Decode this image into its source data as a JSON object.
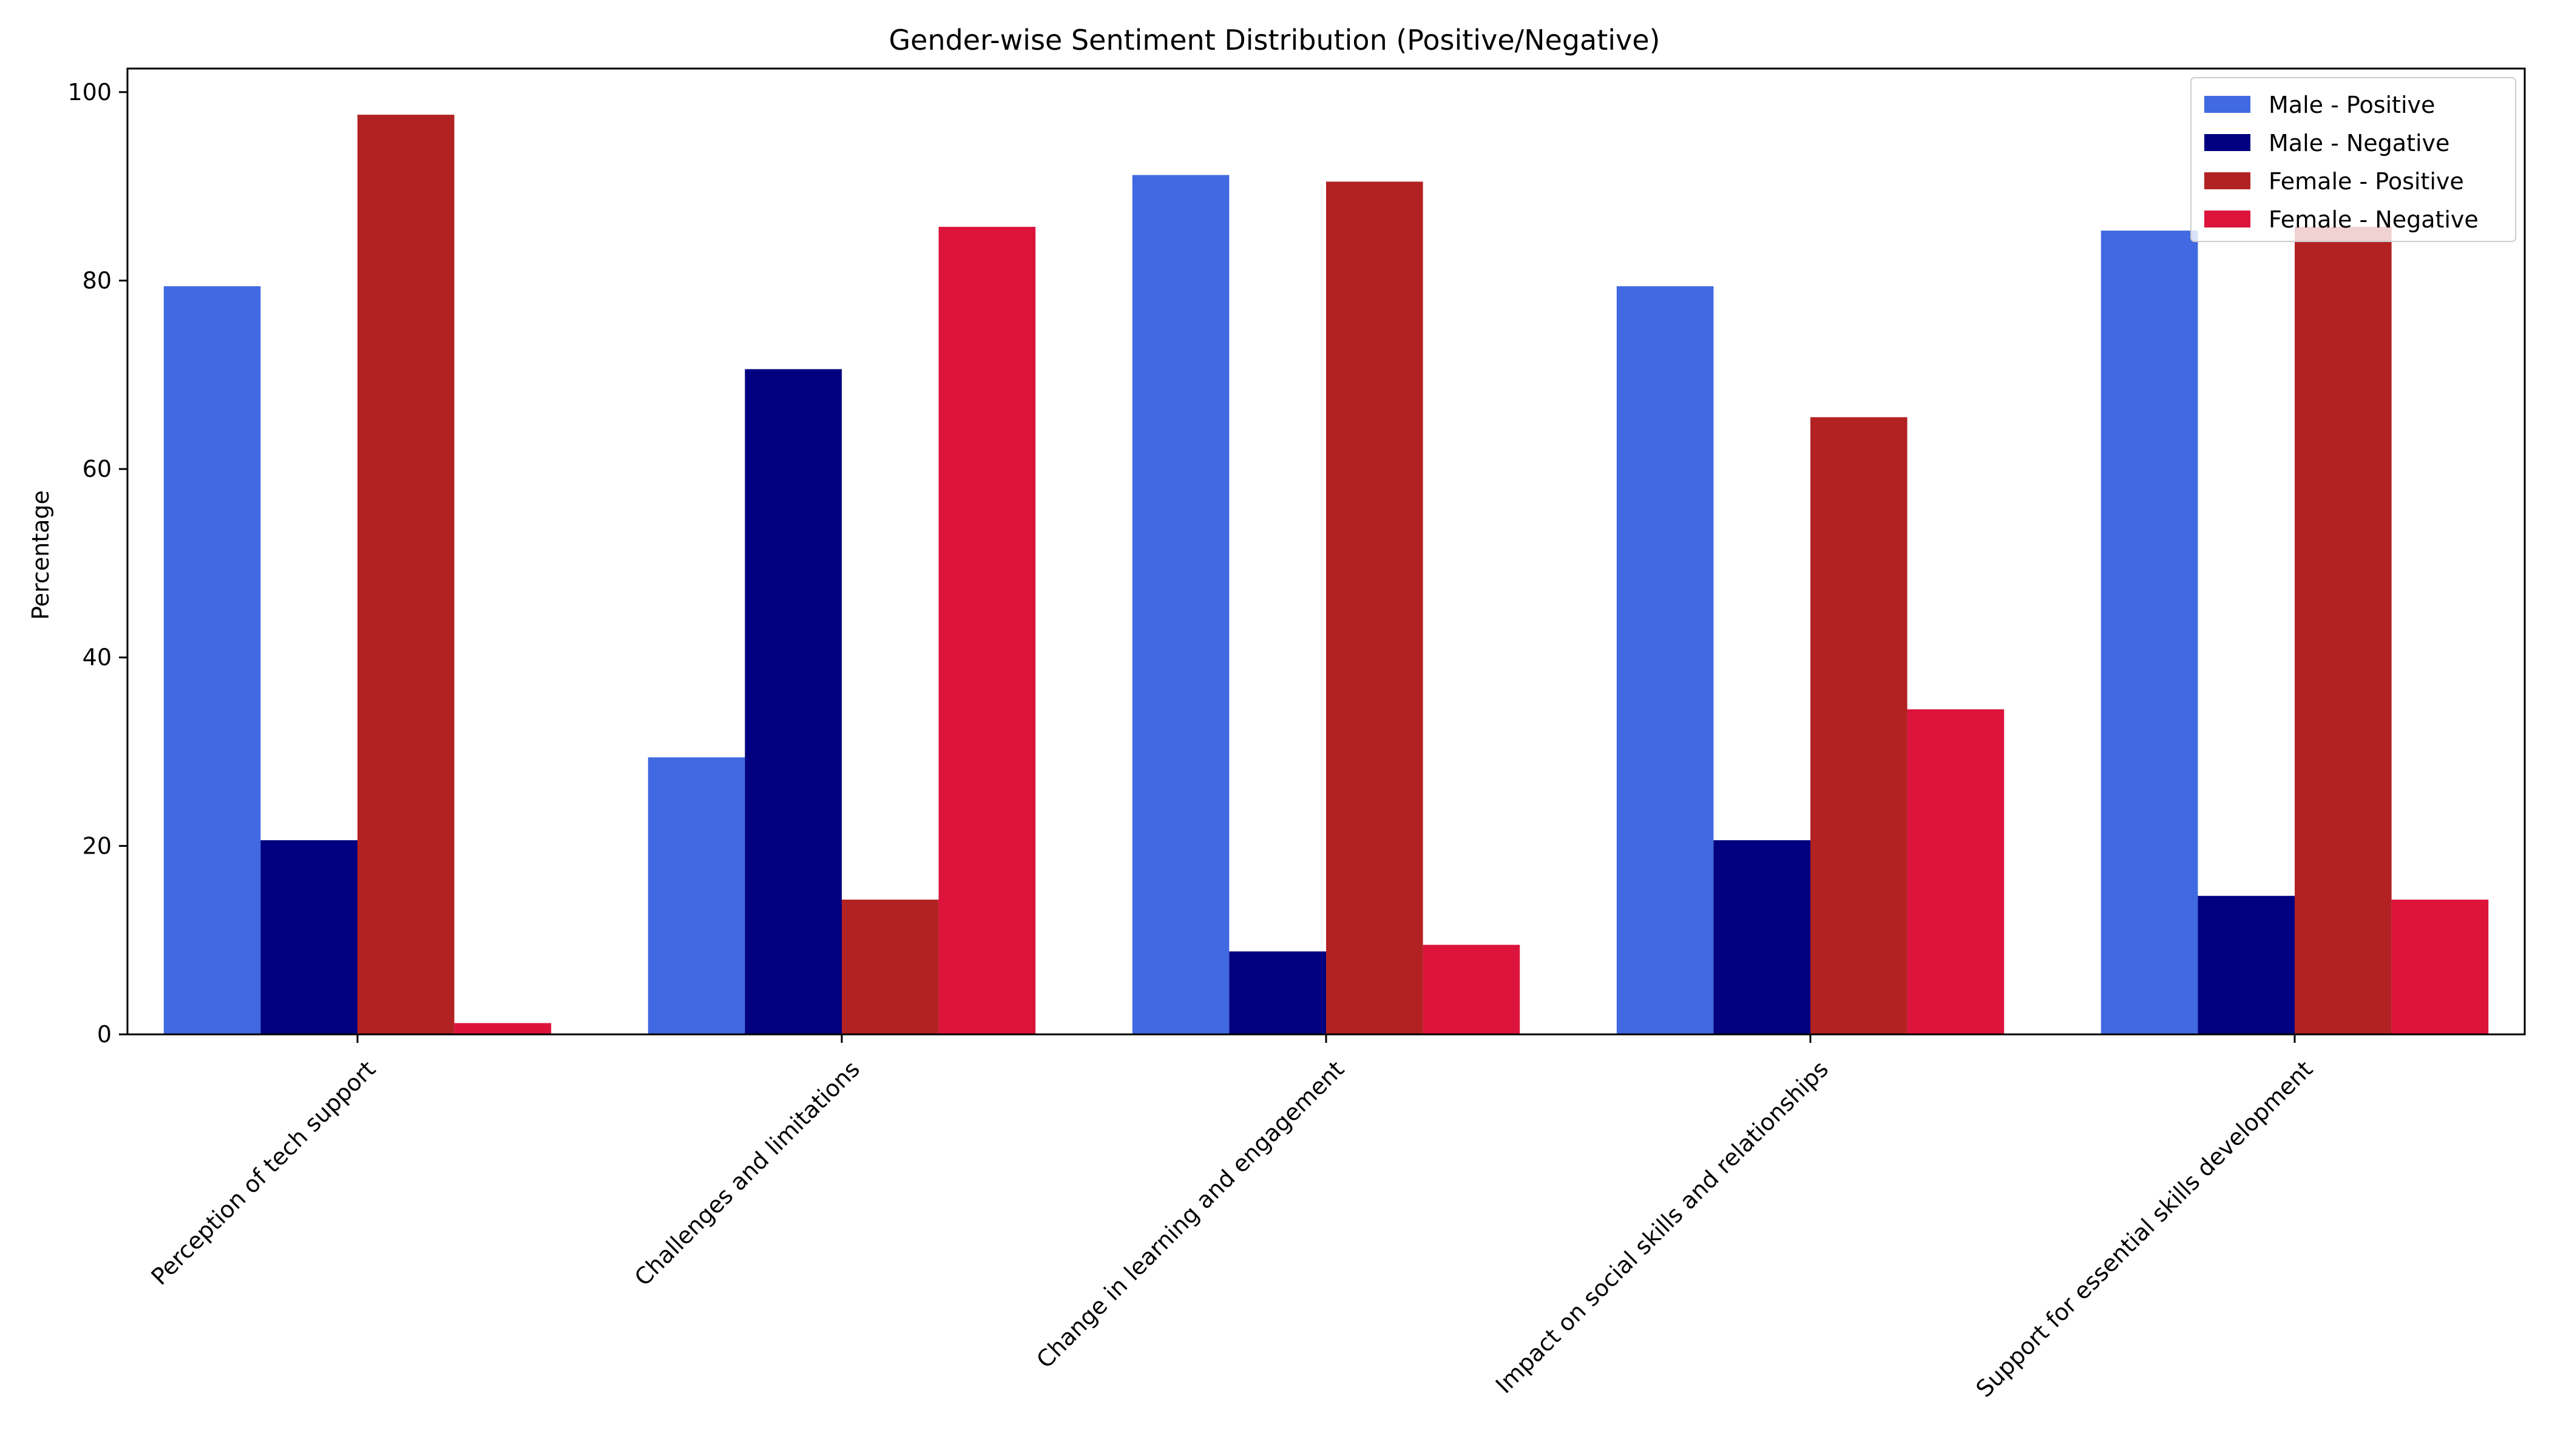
{
  "chart_data": {
    "type": "bar",
    "title": "Gender-wise Sentiment Distribution (Positive/Negative)",
    "xlabel": "",
    "ylabel": "Percentage",
    "ylim": [
      0,
      102.5
    ],
    "yticks": [
      0,
      20,
      40,
      60,
      80,
      100
    ],
    "grid": false,
    "legend_position": "top-right",
    "categories": [
      "Perception of tech support",
      "Challenges and limitations",
      "Change in learning and engagement",
      "Impact on social skills and relationships",
      "Support for essential skills development"
    ],
    "series": [
      {
        "name": "Male - Positive",
        "color": "#4169e1",
        "values": [
          79.4,
          29.4,
          91.2,
          79.4,
          85.3
        ]
      },
      {
        "name": "Male - Negative",
        "color": "#000080",
        "values": [
          20.6,
          70.6,
          8.8,
          20.6,
          14.7
        ]
      },
      {
        "name": "Female - Positive",
        "color": "#b22222",
        "values": [
          97.6,
          14.3,
          90.5,
          65.5,
          85.7
        ]
      },
      {
        "name": "Female - Negative",
        "color": "#dc143c",
        "values": [
          1.2,
          85.7,
          9.5,
          34.5,
          14.3
        ]
      }
    ]
  }
}
